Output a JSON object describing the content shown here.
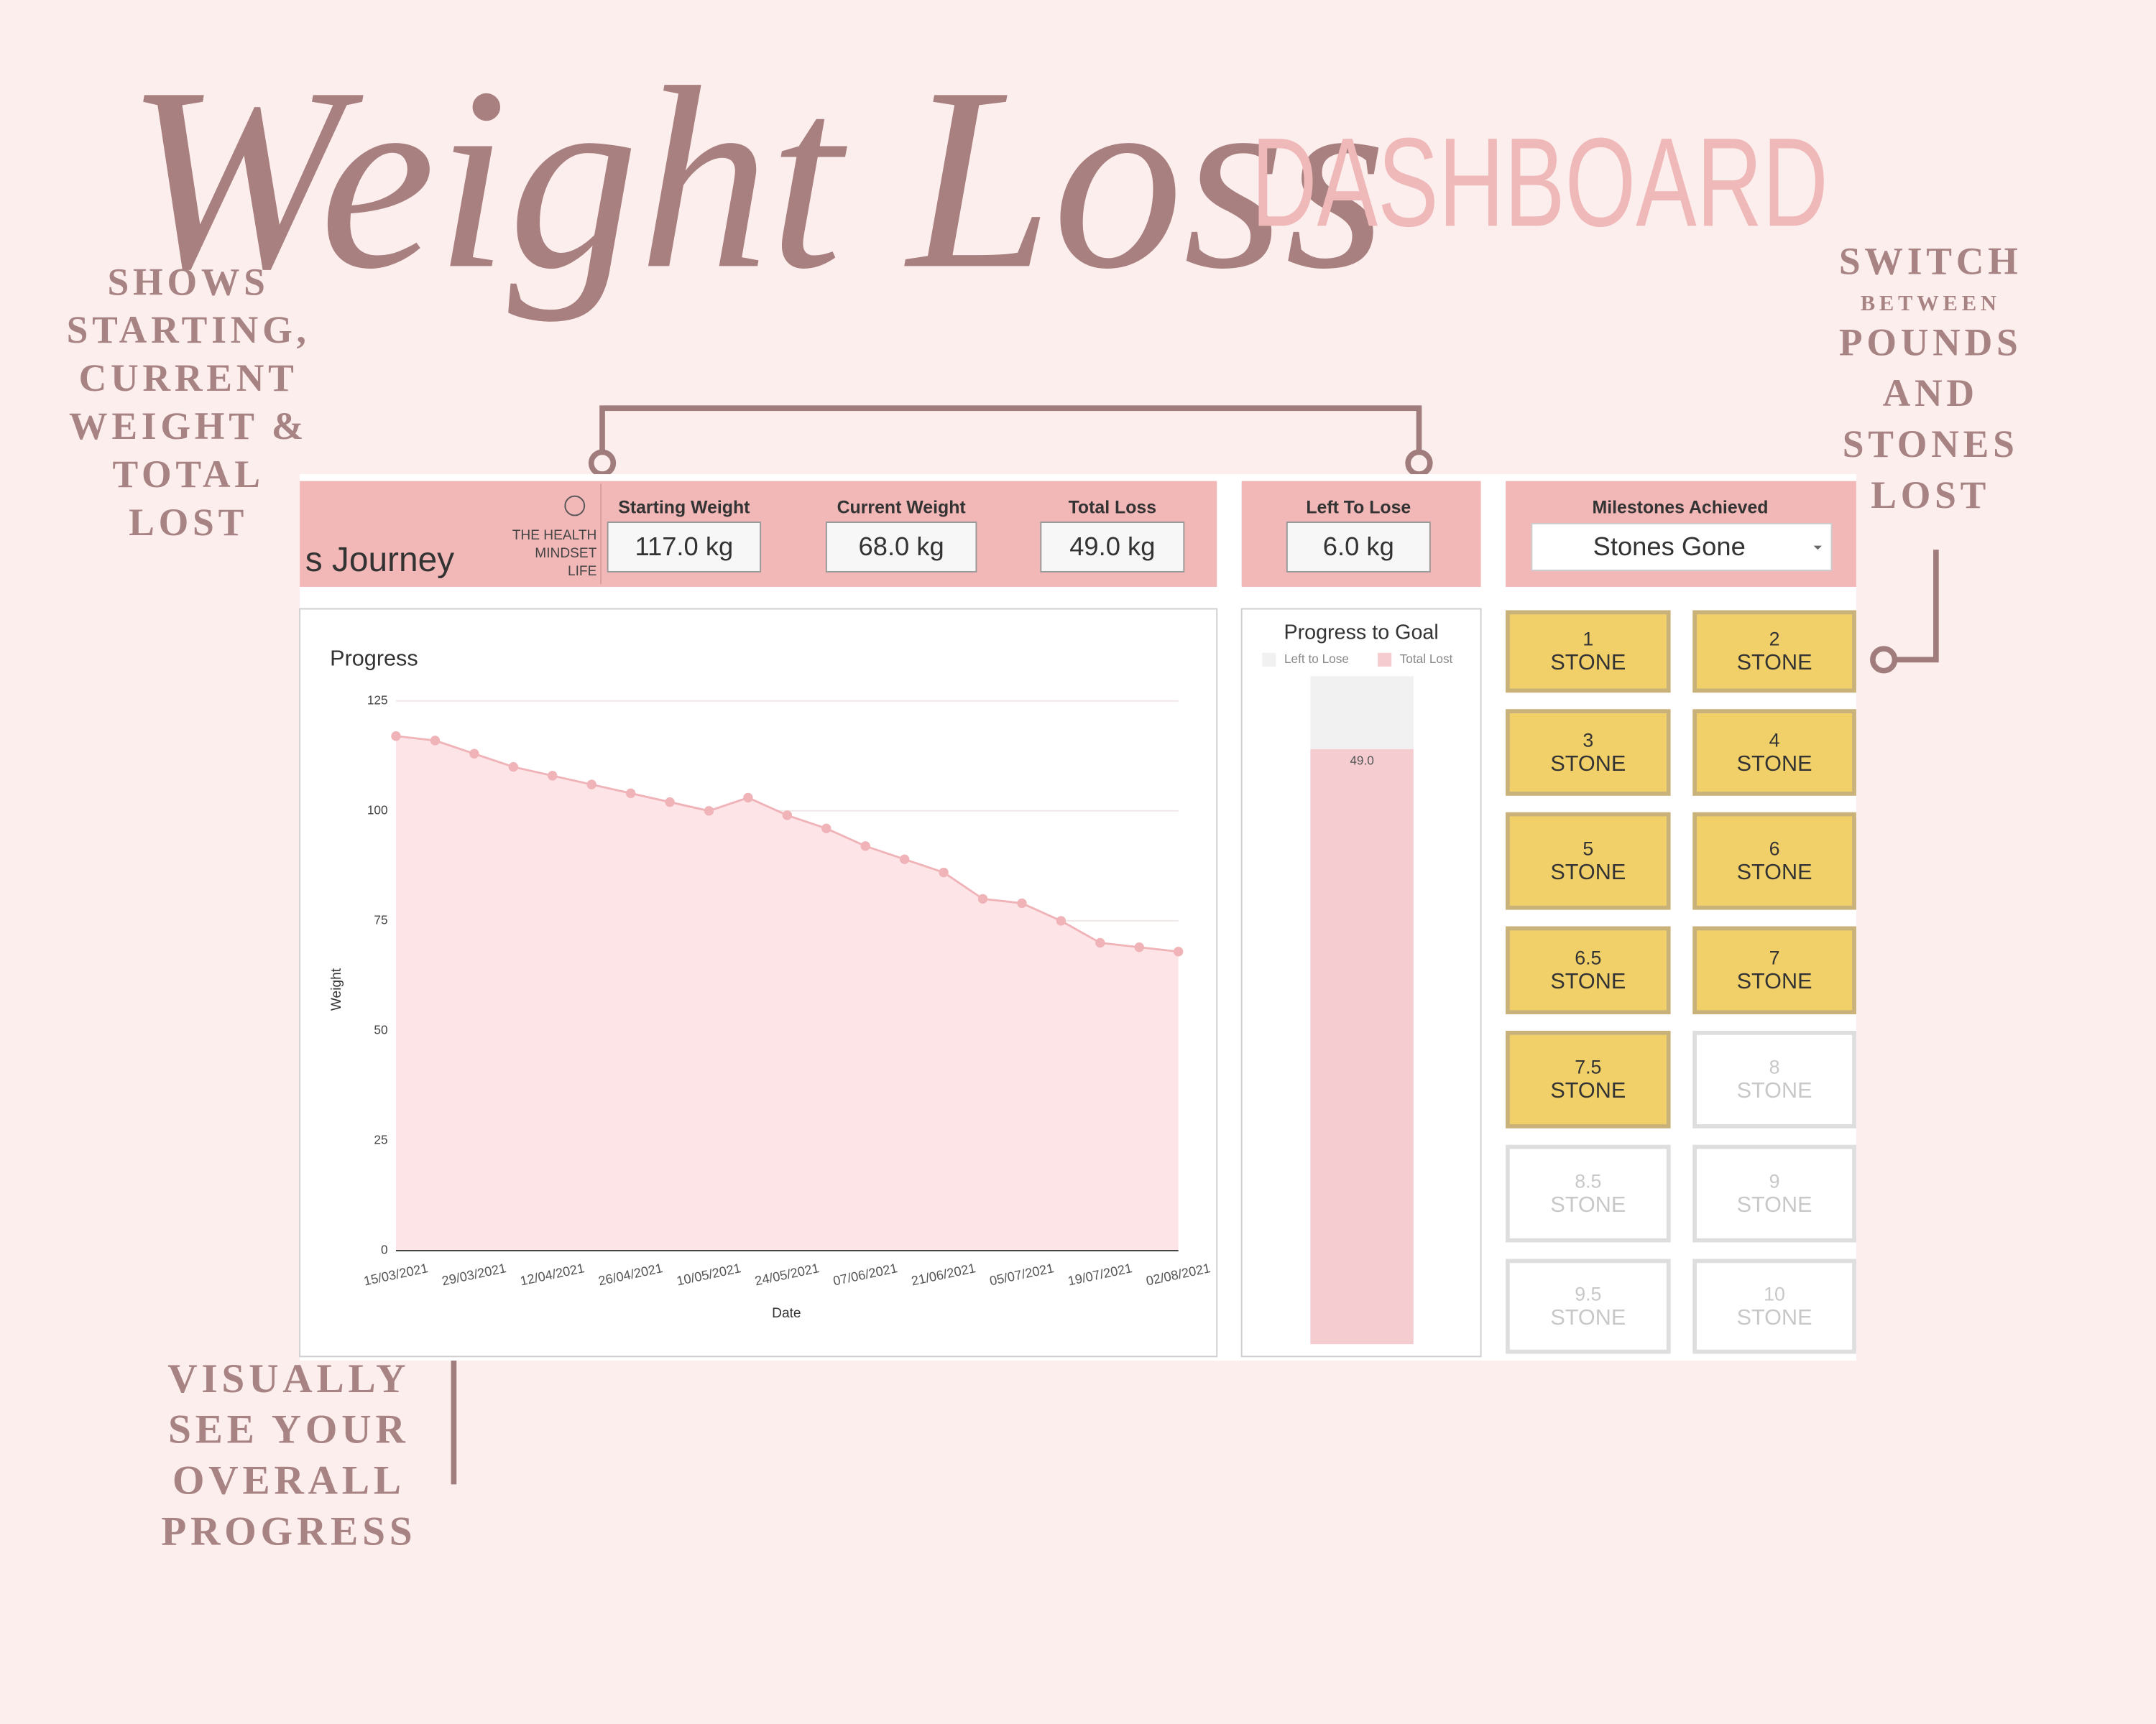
{
  "header": {
    "title": "Weight Loss",
    "subtitle": "DASHBOARD"
  },
  "annotations": {
    "stats": [
      "SHOWS",
      "STARTING,",
      "CURRENT",
      "WEIGHT &",
      "TOTAL",
      "LOST"
    ],
    "units": [
      "SWITCH",
      "BETWEEN",
      "POUNDS",
      "AND",
      "STONES",
      "LOST"
    ],
    "progress": [
      "VISUALLY",
      "SEE YOUR",
      "OVERALL",
      "PROGRESS"
    ]
  },
  "dashboard": {
    "journey": "s Journey",
    "logo": [
      "THE HEALTH",
      "MINDSET",
      "LIFE"
    ],
    "stats": [
      {
        "label": "Starting Weight",
        "value": "117.0 kg"
      },
      {
        "label": "Current Weight",
        "value": "68.0 kg"
      },
      {
        "label": "Total Loss",
        "value": "49.0 kg"
      },
      {
        "label": "Left To Lose",
        "value": "6.0 kg"
      }
    ],
    "milestones": {
      "title": "Milestones Achieved",
      "selector": "Stones Gone",
      "items": [
        {
          "number": "1",
          "unit": "STONE",
          "achieved": true
        },
        {
          "number": "2",
          "unit": "STONE",
          "achieved": true
        },
        {
          "number": "3",
          "unit": "STONE",
          "achieved": true
        },
        {
          "number": "4",
          "unit": "STONE",
          "achieved": true
        },
        {
          "number": "5",
          "unit": "STONE",
          "achieved": true
        },
        {
          "number": "6",
          "unit": "STONE",
          "achieved": true
        },
        {
          "number": "6.5",
          "unit": "STONE",
          "achieved": true
        },
        {
          "number": "7",
          "unit": "STONE",
          "achieved": true
        },
        {
          "number": "7.5",
          "unit": "STONE",
          "achieved": true
        },
        {
          "number": "8",
          "unit": "STONE",
          "achieved": false
        },
        {
          "number": "8.5",
          "unit": "STONE",
          "achieved": false
        },
        {
          "number": "9",
          "unit": "STONE",
          "achieved": false
        },
        {
          "number": "9.5",
          "unit": "STONE",
          "achieved": false
        },
        {
          "number": "10",
          "unit": "STONE",
          "achieved": false
        }
      ]
    }
  },
  "chart_data": [
    {
      "type": "area",
      "title": "Progress",
      "x_label": "Date",
      "y_label": "Weight",
      "categories": [
        "15/03/2021",
        null,
        "29/03/2021",
        null,
        "12/04/2021",
        null,
        "26/04/2021",
        null,
        "10/05/2021",
        null,
        "24/05/2021",
        null,
        "07/06/2021",
        null,
        "21/06/2021",
        null,
        "05/07/2021",
        null,
        "19/07/2021",
        null,
        "02/08/2021"
      ],
      "values": [
        117,
        116,
        113,
        110,
        108,
        106,
        104,
        102,
        100,
        103,
        99,
        96,
        92,
        89,
        86,
        80,
        79,
        75,
        70,
        69,
        68
      ],
      "color": "#efb3b8",
      "fill": "#fde5e7",
      "ylim": [
        0,
        125
      ],
      "yticks": [
        0,
        25,
        50,
        75,
        100,
        125
      ],
      "grid": true
    },
    {
      "type": "bar",
      "title": "Progress to Goal",
      "stacked": true,
      "categories": [
        null
      ],
      "series": [
        {
          "name": "Left to Lose",
          "color": "#f1f1f1",
          "values": [
            6
          ]
        },
        {
          "name": "Total Lost",
          "color": "#f5cdd0",
          "values": [
            49
          ],
          "value_labels": [
            "49.0"
          ]
        }
      ],
      "ylim": [
        0,
        55
      ]
    }
  ]
}
